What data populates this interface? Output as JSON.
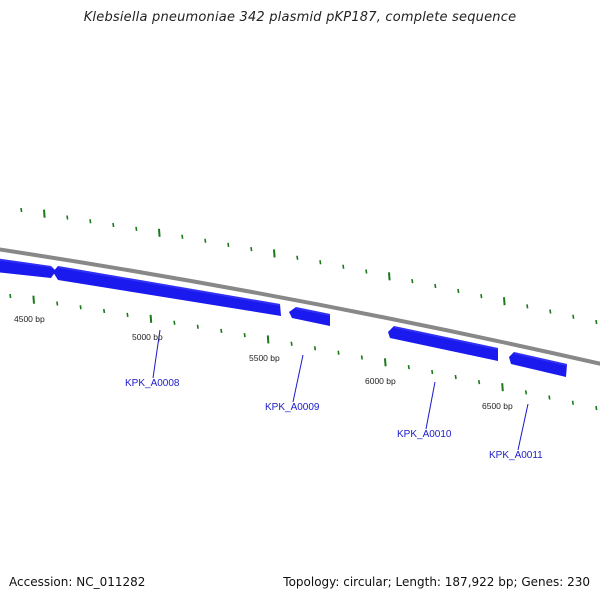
{
  "title": "Klebsiella pneumoniae 342 plasmid pKP187, complete sequence",
  "colors": {
    "gene": "#1a1aee",
    "tick": "#1a7a1a",
    "backbone": "#888888",
    "gene_label": "#1a1acc"
  },
  "positions": [
    "4500 bp",
    "5000 bp",
    "5500 bp",
    "6000 bp",
    "6500 bp"
  ],
  "genes": [
    "KPK_A0008",
    "KPK_A0009",
    "KPK_A0010",
    "KPK_A0011"
  ],
  "footer": {
    "accession": "Accession: NC_011282",
    "summary": "Topology: circular; Length: 187,922 bp; Genes: 230"
  }
}
